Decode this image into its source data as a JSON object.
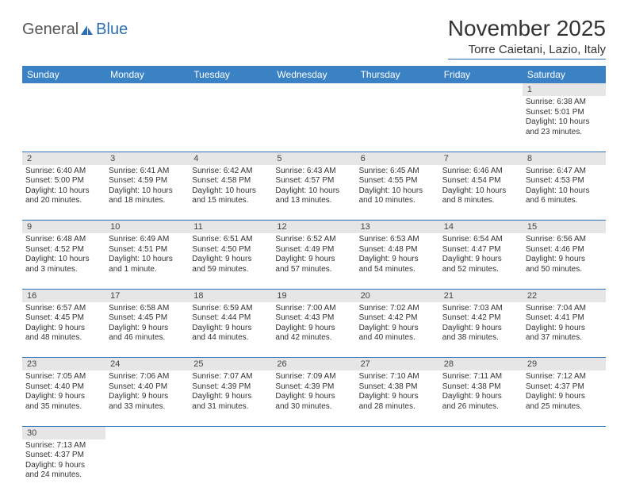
{
  "logo": {
    "general": "General",
    "blue": "Blue"
  },
  "title": "November 2025",
  "location": "Torre Caietani, Lazio, Italy",
  "colors": {
    "header_bg": "#3b82c4",
    "header_text": "#ffffff",
    "daynum_bg": "#e6e6e6",
    "divider": "#2d6fb5",
    "text": "#333333"
  },
  "weekdays": [
    "Sunday",
    "Monday",
    "Tuesday",
    "Wednesday",
    "Thursday",
    "Friday",
    "Saturday"
  ],
  "weeks": [
    [
      null,
      null,
      null,
      null,
      null,
      null,
      {
        "n": "1",
        "sr": "6:38 AM",
        "ss": "5:01 PM",
        "d1": "10 hours",
        "d2": "and 23 minutes."
      }
    ],
    [
      {
        "n": "2",
        "sr": "6:40 AM",
        "ss": "5:00 PM",
        "d1": "10 hours",
        "d2": "and 20 minutes."
      },
      {
        "n": "3",
        "sr": "6:41 AM",
        "ss": "4:59 PM",
        "d1": "10 hours",
        "d2": "and 18 minutes."
      },
      {
        "n": "4",
        "sr": "6:42 AM",
        "ss": "4:58 PM",
        "d1": "10 hours",
        "d2": "and 15 minutes."
      },
      {
        "n": "5",
        "sr": "6:43 AM",
        "ss": "4:57 PM",
        "d1": "10 hours",
        "d2": "and 13 minutes."
      },
      {
        "n": "6",
        "sr": "6:45 AM",
        "ss": "4:55 PM",
        "d1": "10 hours",
        "d2": "and 10 minutes."
      },
      {
        "n": "7",
        "sr": "6:46 AM",
        "ss": "4:54 PM",
        "d1": "10 hours",
        "d2": "and 8 minutes."
      },
      {
        "n": "8",
        "sr": "6:47 AM",
        "ss": "4:53 PM",
        "d1": "10 hours",
        "d2": "and 6 minutes."
      }
    ],
    [
      {
        "n": "9",
        "sr": "6:48 AM",
        "ss": "4:52 PM",
        "d1": "10 hours",
        "d2": "and 3 minutes."
      },
      {
        "n": "10",
        "sr": "6:49 AM",
        "ss": "4:51 PM",
        "d1": "10 hours",
        "d2": "and 1 minute."
      },
      {
        "n": "11",
        "sr": "6:51 AM",
        "ss": "4:50 PM",
        "d1": "9 hours",
        "d2": "and 59 minutes."
      },
      {
        "n": "12",
        "sr": "6:52 AM",
        "ss": "4:49 PM",
        "d1": "9 hours",
        "d2": "and 57 minutes."
      },
      {
        "n": "13",
        "sr": "6:53 AM",
        "ss": "4:48 PM",
        "d1": "9 hours",
        "d2": "and 54 minutes."
      },
      {
        "n": "14",
        "sr": "6:54 AM",
        "ss": "4:47 PM",
        "d1": "9 hours",
        "d2": "and 52 minutes."
      },
      {
        "n": "15",
        "sr": "6:56 AM",
        "ss": "4:46 PM",
        "d1": "9 hours",
        "d2": "and 50 minutes."
      }
    ],
    [
      {
        "n": "16",
        "sr": "6:57 AM",
        "ss": "4:45 PM",
        "d1": "9 hours",
        "d2": "and 48 minutes."
      },
      {
        "n": "17",
        "sr": "6:58 AM",
        "ss": "4:45 PM",
        "d1": "9 hours",
        "d2": "and 46 minutes."
      },
      {
        "n": "18",
        "sr": "6:59 AM",
        "ss": "4:44 PM",
        "d1": "9 hours",
        "d2": "and 44 minutes."
      },
      {
        "n": "19",
        "sr": "7:00 AM",
        "ss": "4:43 PM",
        "d1": "9 hours",
        "d2": "and 42 minutes."
      },
      {
        "n": "20",
        "sr": "7:02 AM",
        "ss": "4:42 PM",
        "d1": "9 hours",
        "d2": "and 40 minutes."
      },
      {
        "n": "21",
        "sr": "7:03 AM",
        "ss": "4:42 PM",
        "d1": "9 hours",
        "d2": "and 38 minutes."
      },
      {
        "n": "22",
        "sr": "7:04 AM",
        "ss": "4:41 PM",
        "d1": "9 hours",
        "d2": "and 37 minutes."
      }
    ],
    [
      {
        "n": "23",
        "sr": "7:05 AM",
        "ss": "4:40 PM",
        "d1": "9 hours",
        "d2": "and 35 minutes."
      },
      {
        "n": "24",
        "sr": "7:06 AM",
        "ss": "4:40 PM",
        "d1": "9 hours",
        "d2": "and 33 minutes."
      },
      {
        "n": "25",
        "sr": "7:07 AM",
        "ss": "4:39 PM",
        "d1": "9 hours",
        "d2": "and 31 minutes."
      },
      {
        "n": "26",
        "sr": "7:09 AM",
        "ss": "4:39 PM",
        "d1": "9 hours",
        "d2": "and 30 minutes."
      },
      {
        "n": "27",
        "sr": "7:10 AM",
        "ss": "4:38 PM",
        "d1": "9 hours",
        "d2": "and 28 minutes."
      },
      {
        "n": "28",
        "sr": "7:11 AM",
        "ss": "4:38 PM",
        "d1": "9 hours",
        "d2": "and 26 minutes."
      },
      {
        "n": "29",
        "sr": "7:12 AM",
        "ss": "4:37 PM",
        "d1": "9 hours",
        "d2": "and 25 minutes."
      }
    ],
    [
      {
        "n": "30",
        "sr": "7:13 AM",
        "ss": "4:37 PM",
        "d1": "9 hours",
        "d2": "and 24 minutes."
      },
      null,
      null,
      null,
      null,
      null,
      null
    ]
  ],
  "labels": {
    "sunrise": "Sunrise: ",
    "sunset": "Sunset: ",
    "daylight": "Daylight: "
  }
}
